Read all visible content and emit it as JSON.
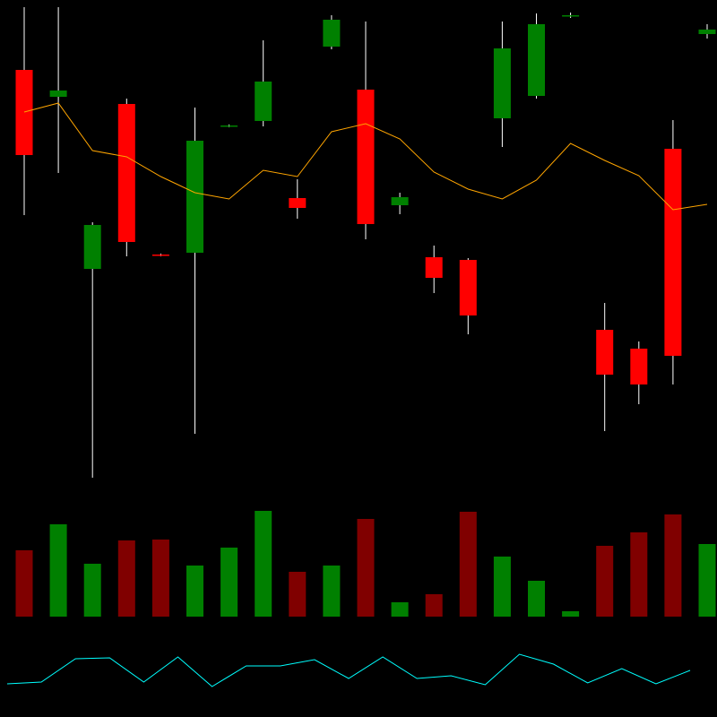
{
  "chart_data": {
    "type": "candlestick",
    "title": "",
    "grid": false,
    "legend": "none",
    "colors": {
      "up": "#008000",
      "down": "#ff0000",
      "volume_up": "#008000",
      "volume_down": "#800000",
      "moving_average": "#ffa500",
      "indicator": "#00ffff",
      "wick": "#ffffff",
      "background": "#000000"
    },
    "price_range": [
      250,
      800
    ],
    "candles": [
      {
        "open": 722,
        "close": 627,
        "high": 792,
        "low": 560
      },
      {
        "open": 692,
        "close": 699,
        "high": 792,
        "low": 607
      },
      {
        "open": 500,
        "close": 549,
        "high": 552,
        "low": 267
      },
      {
        "open": 684,
        "close": 530,
        "high": 690,
        "low": 514
      },
      {
        "open": 516,
        "close": 515,
        "high": 517,
        "low": 514
      },
      {
        "open": 518,
        "close": 643,
        "high": 680,
        "low": 316
      },
      {
        "open": 659,
        "close": 660,
        "high": 661,
        "low": 658
      },
      {
        "open": 665,
        "close": 709,
        "high": 755,
        "low": 659
      },
      {
        "open": 579,
        "close": 568,
        "high": 600,
        "low": 556
      },
      {
        "open": 748,
        "close": 778,
        "high": 783,
        "low": 745
      },
      {
        "open": 700,
        "close": 550,
        "high": 776,
        "low": 533
      },
      {
        "open": 571,
        "close": 580,
        "high": 585,
        "low": 561
      },
      {
        "open": 513,
        "close": 490,
        "high": 526,
        "low": 473
      },
      {
        "open": 510,
        "close": 448,
        "high": 512,
        "low": 427
      },
      {
        "open": 668,
        "close": 746,
        "high": 776,
        "low": 636
      },
      {
        "open": 693,
        "close": 773,
        "high": 785,
        "low": 690
      },
      {
        "open": 782,
        "close": 783,
        "high": 786,
        "low": 780
      },
      {
        "open": 432,
        "close": 382,
        "high": 462,
        "low": 319
      },
      {
        "open": 411,
        "close": 371,
        "high": 419,
        "low": 349
      },
      {
        "open": 634,
        "close": 403,
        "high": 666,
        "low": 371
      },
      {
        "open": 762,
        "close": 767,
        "high": 773,
        "low": 757
      }
    ],
    "moving_average": [
      675,
      685,
      632,
      625,
      603,
      585,
      578,
      610,
      603,
      653,
      662,
      645,
      608,
      589,
      578,
      599,
      640,
      621,
      604,
      566,
      572
    ],
    "volume": [
      74,
      103,
      59,
      85,
      86,
      57,
      77,
      118,
      50,
      57,
      109,
      16,
      25,
      117,
      67,
      40,
      6,
      79,
      94,
      114,
      81
    ],
    "indicator": [
      37,
      39,
      65,
      66,
      39,
      67,
      34,
      57,
      57,
      64,
      43,
      67,
      43,
      46,
      36,
      70,
      59,
      38,
      54,
      37,
      52
    ]
  }
}
